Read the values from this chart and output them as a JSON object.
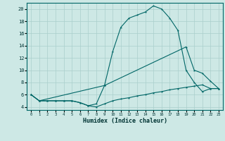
{
  "xlabel": "Humidex (Indice chaleur)",
  "bg_color": "#cde8e5",
  "line_color": "#006666",
  "grid_color": "#aacfcc",
  "xlim": [
    -0.5,
    23.5
  ],
  "ylim": [
    3.5,
    21.0
  ],
  "yticks": [
    4,
    6,
    8,
    10,
    12,
    14,
    16,
    18,
    20
  ],
  "xticks": [
    0,
    1,
    2,
    3,
    4,
    5,
    6,
    7,
    8,
    9,
    10,
    11,
    12,
    13,
    14,
    15,
    16,
    17,
    18,
    19,
    20,
    21,
    22,
    23
  ],
  "line1_x": [
    0,
    1,
    2,
    3,
    4,
    5,
    6,
    7,
    8,
    9,
    10,
    11,
    12,
    13,
    14,
    15,
    16,
    17,
    18,
    19,
    20,
    21,
    22,
    23
  ],
  "line1_y": [
    6,
    5,
    5,
    5,
    5,
    5,
    4.7,
    4.2,
    4.0,
    4.5,
    5.0,
    5.3,
    5.5,
    5.8,
    6.0,
    6.3,
    6.5,
    6.8,
    7.0,
    7.2,
    7.4,
    7.6,
    7.0,
    7.0
  ],
  "line2_x": [
    0,
    1,
    2,
    3,
    4,
    5,
    6,
    7,
    8,
    9,
    10,
    11,
    12,
    13,
    14,
    15,
    16,
    17,
    18,
    19,
    20,
    21,
    22,
    23
  ],
  "line2_y": [
    6,
    5,
    5,
    5,
    5,
    5,
    4.7,
    4.2,
    4.5,
    7.5,
    13.0,
    17.0,
    18.5,
    19.0,
    19.5,
    20.5,
    20.0,
    18.5,
    16.5,
    10.0,
    8.0,
    6.5,
    7.0,
    7.0
  ],
  "line3_x": [
    0,
    1,
    9,
    19,
    20,
    21,
    22,
    23
  ],
  "line3_y": [
    6,
    5,
    7.5,
    13.8,
    10.0,
    9.5,
    8.2,
    7.0
  ]
}
